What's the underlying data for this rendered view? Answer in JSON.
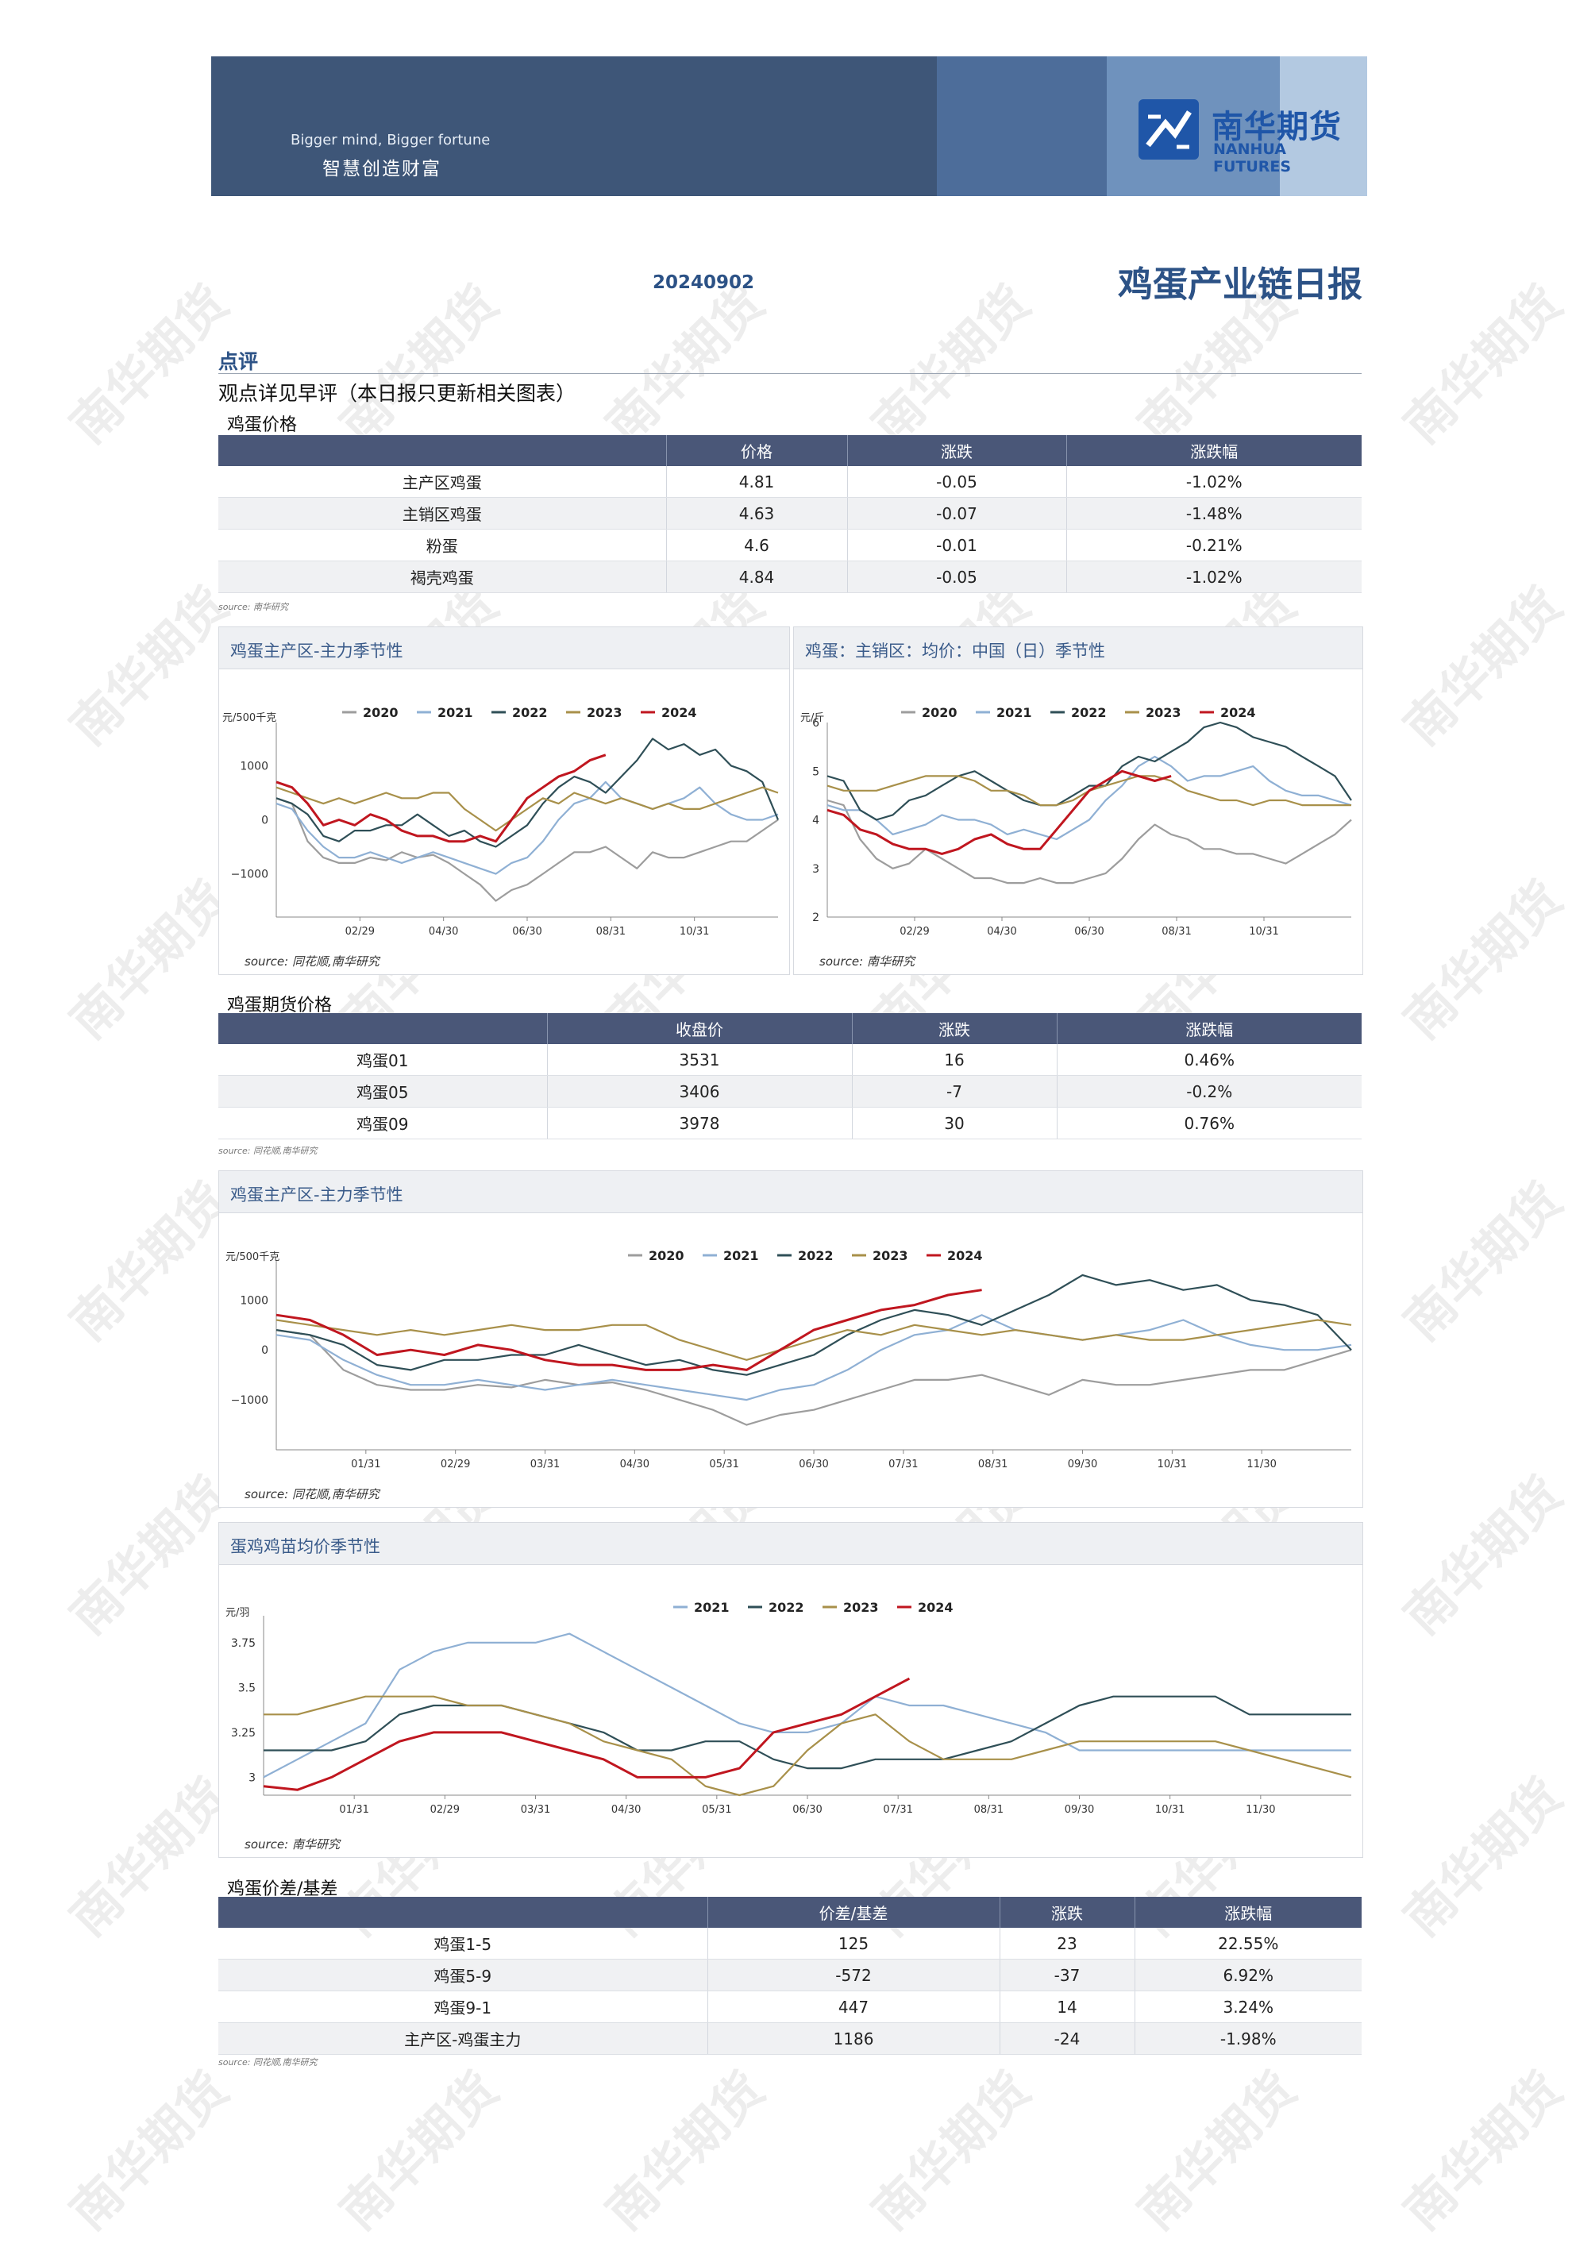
{
  "header": {
    "slogan_en": "Bigger mind, Bigger fortune",
    "slogan_cn": "智慧创造财富",
    "logo_cn": "南华期货",
    "logo_en": "NANHUA FUTURES"
  },
  "report": {
    "date": "20240902",
    "title": "鸡蛋产业链日报"
  },
  "comment": {
    "heading": "点评",
    "text": "观点详见早评（本日报只更新相关图表）"
  },
  "watermark": "南华期货",
  "colors": {
    "y2020": "#9d9d9d",
    "y2021": "#8fb0d4",
    "y2022": "#2f4f57",
    "y2023": "#a8904a",
    "y2024": "#c0161f",
    "table_header": "#4a5778",
    "title_blue": "#2c5286"
  },
  "egg_price": {
    "title": "鸡蛋价格",
    "headers": [
      "",
      "价格",
      "涨跌",
      "涨跌幅"
    ],
    "rows": [
      [
        "主产区鸡蛋",
        "4.81",
        "-0.05",
        "-1.02%"
      ],
      [
        "主销区鸡蛋",
        "4.63",
        "-0.07",
        "-1.48%"
      ],
      [
        "粉蛋",
        "4.6",
        "-0.01",
        "-0.21%"
      ],
      [
        "褐壳鸡蛋",
        "4.84",
        "-0.05",
        "-1.02%"
      ]
    ],
    "source": "source: 南华研究"
  },
  "futures_price": {
    "title": "鸡蛋期货价格",
    "headers": [
      "",
      "收盘价",
      "涨跌",
      "涨跌幅"
    ],
    "rows": [
      [
        "鸡蛋01",
        "3531",
        "16",
        "0.46%"
      ],
      [
        "鸡蛋05",
        "3406",
        "-7",
        "-0.2%"
      ],
      [
        "鸡蛋09",
        "3978",
        "30",
        "0.76%"
      ]
    ],
    "source": "source: 同花顺,南华研究"
  },
  "spread": {
    "title": "鸡蛋价差/基差",
    "headers": [
      "",
      "价差/基差",
      "涨跌",
      "涨跌幅"
    ],
    "rows": [
      [
        "鸡蛋1-5",
        "125",
        "23",
        "22.55%"
      ],
      [
        "鸡蛋5-9",
        "-572",
        "-37",
        "6.92%"
      ],
      [
        "鸡蛋9-1",
        "447",
        "14",
        "3.24%"
      ],
      [
        "主产区-鸡蛋主力",
        "1186",
        "-24",
        "-1.98%"
      ]
    ],
    "source": "source: 同花顺,南华研究"
  },
  "chart_data": [
    {
      "type": "line",
      "title": "鸡蛋主产区-主力季节性",
      "ylabel": "元/500千克",
      "yticks": [
        "1000",
        "0",
        "−1000"
      ],
      "ylim": [
        -1800,
        1800
      ],
      "xticks": [
        "02/29",
        "04/30",
        "06/30",
        "08/31",
        "10/31"
      ],
      "legend": [
        "2020",
        "2021",
        "2022",
        "2023",
        "2024"
      ],
      "source": "source:  同花顺,南华研究",
      "series": [
        {
          "name": "2020",
          "values": [
            400,
            300,
            -400,
            -700,
            -800,
            -800,
            -700,
            -750,
            -600,
            -700,
            -650,
            -800,
            -1000,
            -1200,
            -1500,
            -1300,
            -1200,
            -1000,
            -800,
            -600,
            -600,
            -500,
            -700,
            -900,
            -600,
            -700,
            -700,
            -600,
            -500,
            -400,
            -400,
            -200,
            0
          ]
        },
        {
          "name": "2021",
          "values": [
            300,
            200,
            -200,
            -500,
            -700,
            -700,
            -600,
            -700,
            -800,
            -700,
            -600,
            -700,
            -800,
            -900,
            -1000,
            -800,
            -700,
            -400,
            0,
            300,
            400,
            700,
            400,
            300,
            200,
            300,
            400,
            600,
            300,
            100,
            0,
            0,
            100
          ]
        },
        {
          "name": "2022",
          "values": [
            400,
            300,
            100,
            -300,
            -400,
            -200,
            -200,
            -100,
            -100,
            100,
            -100,
            -300,
            -200,
            -400,
            -500,
            -300,
            -100,
            300,
            600,
            800,
            700,
            500,
            800,
            1100,
            1500,
            1300,
            1400,
            1200,
            1300,
            1000,
            900,
            700,
            0
          ]
        },
        {
          "name": "2023",
          "values": [
            600,
            500,
            400,
            300,
            400,
            300,
            400,
            500,
            400,
            400,
            500,
            500,
            200,
            0,
            -200,
            0,
            200,
            400,
            300,
            500,
            400,
            300,
            400,
            300,
            200,
            300,
            200,
            200,
            300,
            400,
            500,
            600,
            500
          ]
        },
        {
          "name": "2024",
          "values": [
            700,
            600,
            300,
            -100,
            0,
            -100,
            100,
            0,
            -200,
            -300,
            -300,
            -400,
            -400,
            -300,
            -400,
            0,
            400,
            600,
            800,
            900,
            1100,
            1200
          ]
        }
      ]
    },
    {
      "type": "line",
      "title": "鸡蛋：主销区：均价：中国（日）季节性",
      "ylabel": "元/斤",
      "yticks": [
        "6",
        "5",
        "4",
        "3",
        "2"
      ],
      "ylim": [
        2,
        6
      ],
      "xticks": [
        "02/29",
        "04/30",
        "06/30",
        "08/31",
        "10/31"
      ],
      "legend": [
        "2020",
        "2021",
        "2022",
        "2023",
        "2024"
      ],
      "source": "source:  南华研究",
      "series": [
        {
          "name": "2020",
          "values": [
            4.4,
            4.3,
            3.6,
            3.2,
            3.0,
            3.1,
            3.4,
            3.2,
            3.0,
            2.8,
            2.8,
            2.7,
            2.7,
            2.8,
            2.7,
            2.7,
            2.8,
            2.9,
            3.2,
            3.6,
            3.9,
            3.7,
            3.6,
            3.4,
            3.4,
            3.3,
            3.3,
            3.2,
            3.1,
            3.3,
            3.5,
            3.7,
            4.0
          ]
        },
        {
          "name": "2021",
          "values": [
            4.3,
            4.2,
            4.2,
            4.0,
            3.7,
            3.8,
            3.9,
            4.1,
            4.0,
            4.0,
            3.9,
            3.7,
            3.8,
            3.7,
            3.6,
            3.8,
            4.0,
            4.4,
            4.7,
            5.1,
            5.3,
            5.1,
            4.8,
            4.9,
            4.9,
            5.0,
            5.1,
            4.8,
            4.6,
            4.5,
            4.5,
            4.4,
            4.3
          ]
        },
        {
          "name": "2022",
          "values": [
            4.9,
            4.8,
            4.2,
            4.0,
            4.1,
            4.4,
            4.5,
            4.7,
            4.9,
            5.0,
            4.8,
            4.6,
            4.4,
            4.3,
            4.3,
            4.5,
            4.7,
            4.7,
            5.1,
            5.3,
            5.2,
            5.4,
            5.6,
            5.9,
            6.0,
            5.9,
            5.7,
            5.6,
            5.5,
            5.3,
            5.1,
            4.9,
            4.4
          ]
        },
        {
          "name": "2023",
          "values": [
            4.7,
            4.6,
            4.6,
            4.6,
            4.7,
            4.8,
            4.9,
            4.9,
            4.9,
            4.8,
            4.6,
            4.6,
            4.5,
            4.3,
            4.3,
            4.4,
            4.6,
            4.7,
            4.8,
            4.9,
            4.9,
            4.8,
            4.6,
            4.5,
            4.4,
            4.4,
            4.3,
            4.4,
            4.4,
            4.3,
            4.3,
            4.3,
            4.3
          ]
        },
        {
          "name": "2024",
          "values": [
            4.2,
            4.1,
            3.8,
            3.7,
            3.5,
            3.4,
            3.4,
            3.3,
            3.4,
            3.6,
            3.7,
            3.5,
            3.4,
            3.4,
            3.8,
            4.2,
            4.6,
            4.8,
            5.0,
            4.9,
            4.8,
            4.9
          ]
        }
      ]
    },
    {
      "type": "line",
      "title": "鸡蛋主产区-主力季节性",
      "ylabel": "元/500千克",
      "yticks": [
        "1000",
        "0",
        "−1000"
      ],
      "ylim": [
        -2000,
        1800
      ],
      "xticks": [
        "01/31",
        "02/29",
        "03/31",
        "04/30",
        "05/31",
        "06/30",
        "07/31",
        "08/31",
        "09/30",
        "10/31",
        "11/30"
      ],
      "legend": [
        "2020",
        "2021",
        "2022",
        "2023",
        "2024"
      ],
      "source": "source:  同花顺,南华研究",
      "series": [
        {
          "name": "2020",
          "values": [
            400,
            300,
            -400,
            -700,
            -800,
            -800,
            -700,
            -750,
            -600,
            -700,
            -650,
            -800,
            -1000,
            -1200,
            -1500,
            -1300,
            -1200,
            -1000,
            -800,
            -600,
            -600,
            -500,
            -700,
            -900,
            -600,
            -700,
            -700,
            -600,
            -500,
            -400,
            -400,
            -200,
            0
          ]
        },
        {
          "name": "2021",
          "values": [
            300,
            200,
            -200,
            -500,
            -700,
            -700,
            -600,
            -700,
            -800,
            -700,
            -600,
            -700,
            -800,
            -900,
            -1000,
            -800,
            -700,
            -400,
            0,
            300,
            400,
            700,
            400,
            300,
            200,
            300,
            400,
            600,
            300,
            100,
            0,
            0,
            100
          ]
        },
        {
          "name": "2022",
          "values": [
            400,
            300,
            100,
            -300,
            -400,
            -200,
            -200,
            -100,
            -100,
            100,
            -100,
            -300,
            -200,
            -400,
            -500,
            -300,
            -100,
            300,
            600,
            800,
            700,
            500,
            800,
            1100,
            1500,
            1300,
            1400,
            1200,
            1300,
            1000,
            900,
            700,
            0
          ]
        },
        {
          "name": "2023",
          "values": [
            600,
            500,
            400,
            300,
            400,
            300,
            400,
            500,
            400,
            400,
            500,
            500,
            200,
            0,
            -200,
            0,
            200,
            400,
            300,
            500,
            400,
            300,
            400,
            300,
            200,
            300,
            200,
            200,
            300,
            400,
            500,
            600,
            500
          ]
        },
        {
          "name": "2024",
          "values": [
            700,
            600,
            300,
            -100,
            0,
            -100,
            100,
            0,
            -200,
            -300,
            -300,
            -400,
            -400,
            -300,
            -400,
            0,
            400,
            600,
            800,
            900,
            1100,
            1200
          ]
        }
      ]
    },
    {
      "type": "line",
      "title": "蛋鸡鸡苗均价季节性",
      "ylabel": "元/羽",
      "yticks": [
        "3.75",
        "3.5",
        "3.25",
        "3"
      ],
      "ylim": [
        2.9,
        3.9
      ],
      "xticks": [
        "01/31",
        "02/29",
        "03/31",
        "04/30",
        "05/31",
        "06/30",
        "07/31",
        "08/31",
        "09/30",
        "10/31",
        "11/30"
      ],
      "legend": [
        "2021",
        "2022",
        "2023",
        "2024"
      ],
      "source": "source:  南华研究",
      "series": [
        {
          "name": "2021",
          "values": [
            3.0,
            3.1,
            3.2,
            3.3,
            3.6,
            3.7,
            3.75,
            3.75,
            3.75,
            3.8,
            3.7,
            3.6,
            3.5,
            3.4,
            3.3,
            3.25,
            3.25,
            3.3,
            3.45,
            3.4,
            3.4,
            3.35,
            3.3,
            3.25,
            3.15,
            3.15,
            3.15,
            3.15,
            3.15,
            3.15,
            3.15,
            3.15,
            3.15
          ]
        },
        {
          "name": "2022",
          "values": [
            3.15,
            3.15,
            3.15,
            3.2,
            3.35,
            3.4,
            3.4,
            3.4,
            3.35,
            3.3,
            3.25,
            3.15,
            3.15,
            3.2,
            3.2,
            3.1,
            3.05,
            3.05,
            3.1,
            3.1,
            3.1,
            3.15,
            3.2,
            3.3,
            3.4,
            3.45,
            3.45,
            3.45,
            3.45,
            3.35,
            3.35,
            3.35,
            3.35
          ]
        },
        {
          "name": "2023",
          "values": [
            3.35,
            3.35,
            3.4,
            3.45,
            3.45,
            3.45,
            3.4,
            3.4,
            3.35,
            3.3,
            3.2,
            3.15,
            3.1,
            2.95,
            2.9,
            2.95,
            3.15,
            3.3,
            3.35,
            3.2,
            3.1,
            3.1,
            3.1,
            3.15,
            3.2,
            3.2,
            3.2,
            3.2,
            3.2,
            3.15,
            3.1,
            3.05,
            3.0
          ]
        },
        {
          "name": "2024",
          "values": [
            2.95,
            2.93,
            3.0,
            3.1,
            3.2,
            3.25,
            3.25,
            3.25,
            3.2,
            3.15,
            3.1,
            3.0,
            3.0,
            3.0,
            3.05,
            3.25,
            3.3,
            3.35,
            3.45,
            3.55
          ]
        }
      ]
    }
  ]
}
